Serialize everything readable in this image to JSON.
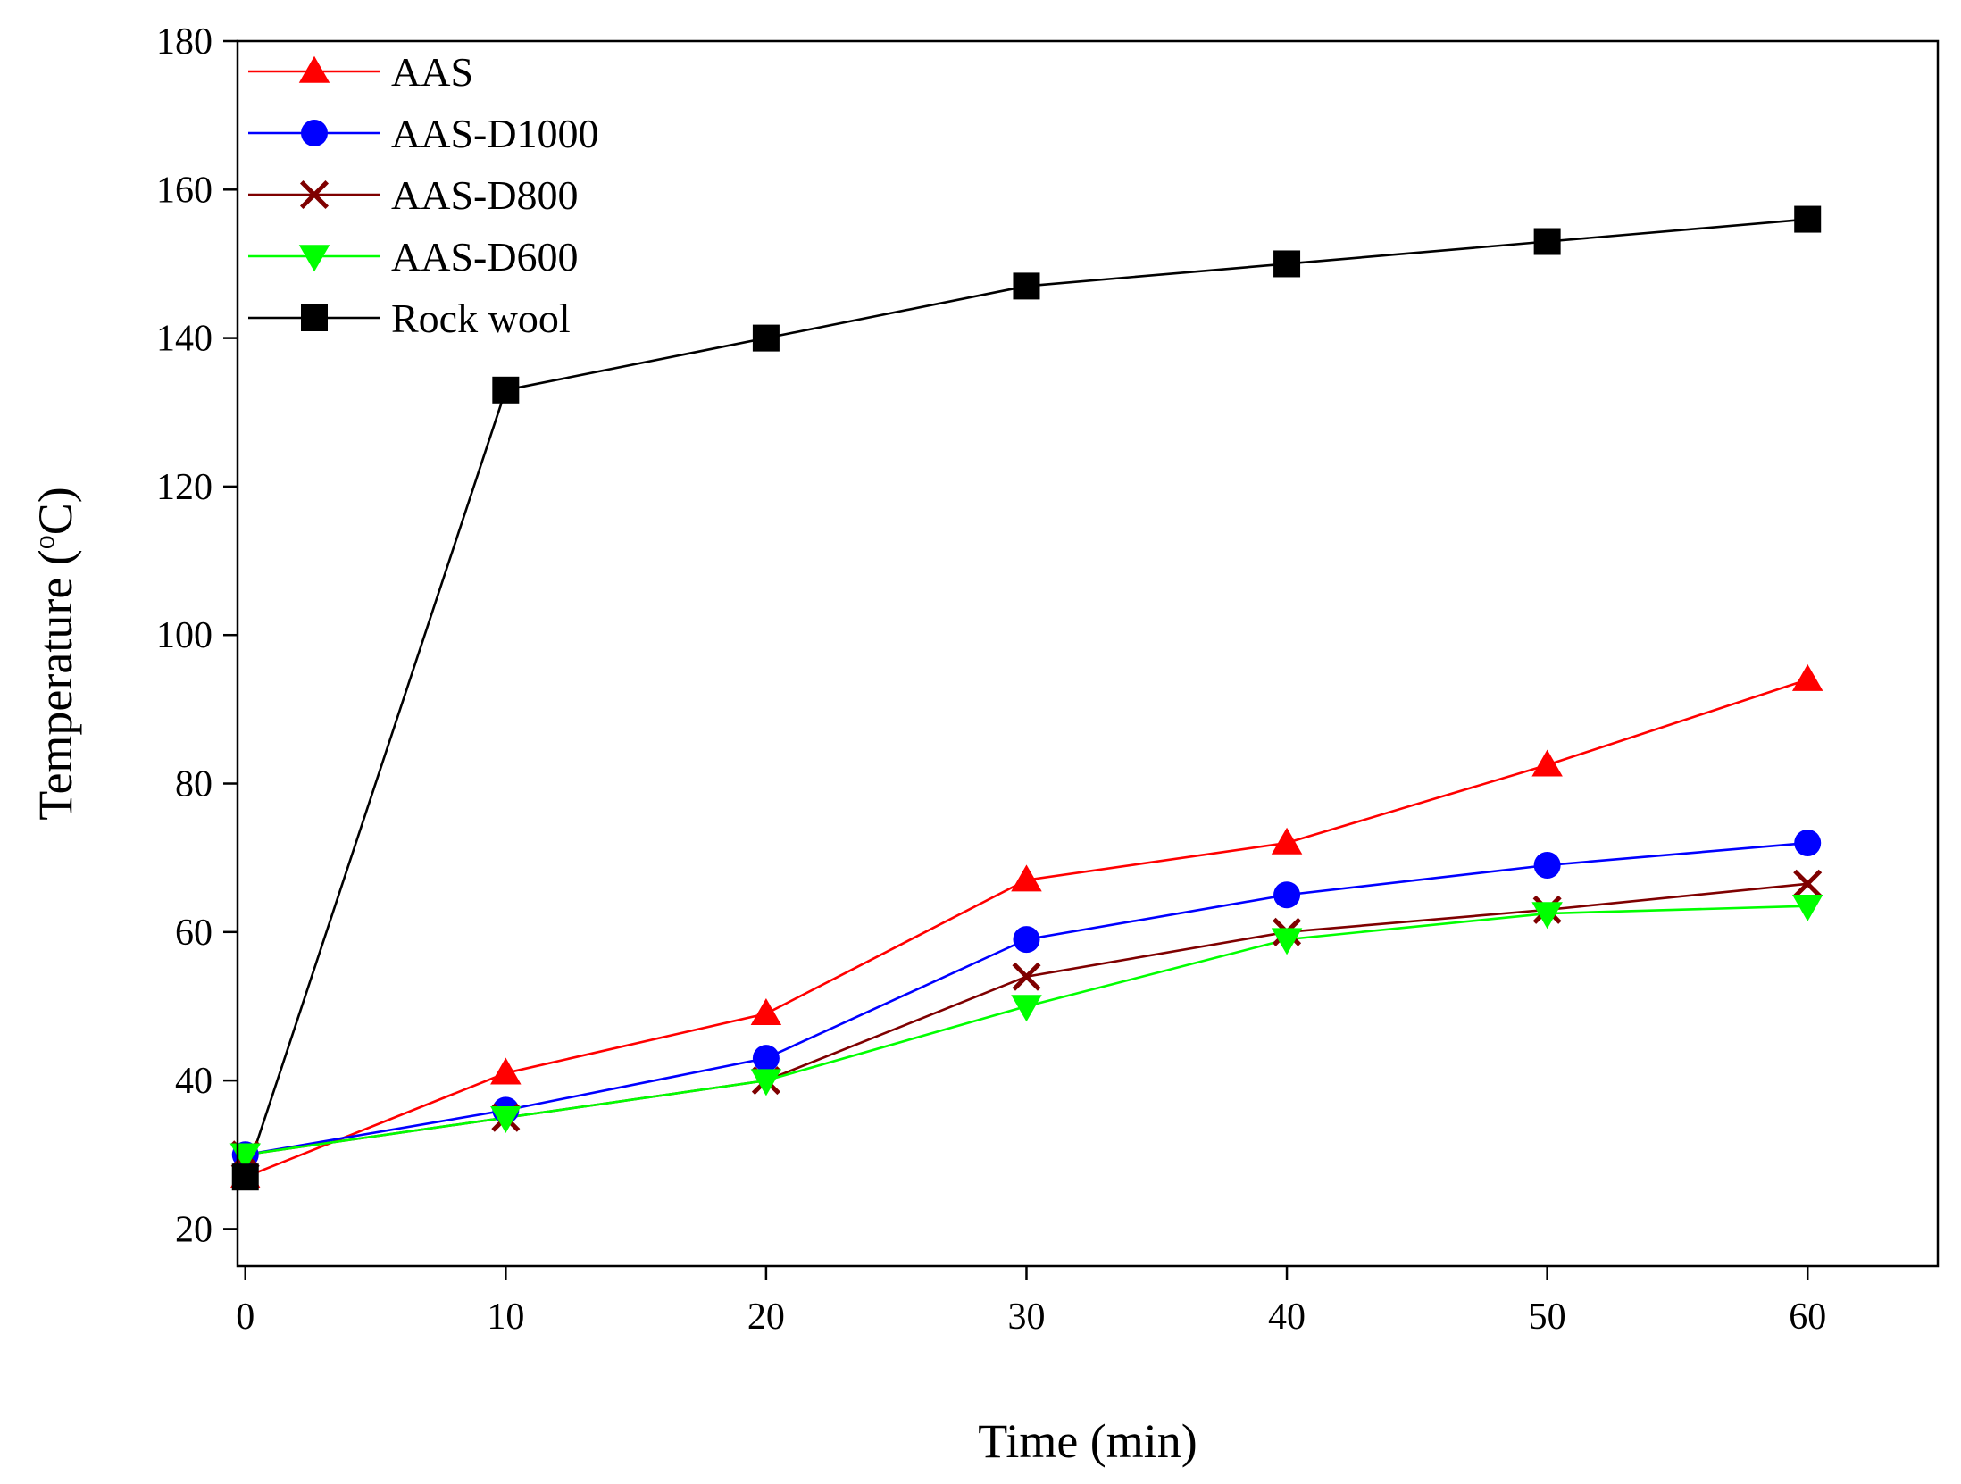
{
  "chart_data": {
    "type": "line",
    "title": "",
    "xlabel": "Time (min)",
    "ylabel": "Temperature (",
    "ylabel_sup": "o",
    "ylabel_unit": "C)",
    "x": [
      0,
      10,
      20,
      30,
      40,
      50,
      60
    ],
    "xlim": [
      -0.3,
      65
    ],
    "ylim": [
      15,
      180
    ],
    "xticks": [
      0,
      10,
      20,
      30,
      40,
      50,
      60
    ],
    "yticks": [
      20,
      40,
      60,
      80,
      100,
      120,
      140,
      160,
      180
    ],
    "grid": false,
    "legend_position": "top-left",
    "series": [
      {
        "name": "AAS",
        "color": "#ff0000",
        "marker": "triangle-up",
        "values": [
          27,
          41,
          49,
          67,
          72,
          82.5,
          94
        ]
      },
      {
        "name": "AAS-D1000",
        "color": "#0000ff",
        "marker": "circle",
        "values": [
          30,
          36,
          43,
          59,
          65,
          69,
          72
        ]
      },
      {
        "name": "AAS-D800",
        "color": "#7f0000",
        "marker": "x",
        "values": [
          30,
          35,
          40,
          54,
          60,
          63,
          66.5
        ]
      },
      {
        "name": "AAS-D600",
        "color": "#00ff00",
        "marker": "triangle-down",
        "values": [
          30,
          35,
          40,
          50,
          59,
          62.5,
          63.5
        ]
      },
      {
        "name": "Rock wool",
        "color": "#000000",
        "marker": "square",
        "values": [
          27,
          133,
          140,
          147,
          150,
          153,
          156
        ]
      }
    ]
  }
}
